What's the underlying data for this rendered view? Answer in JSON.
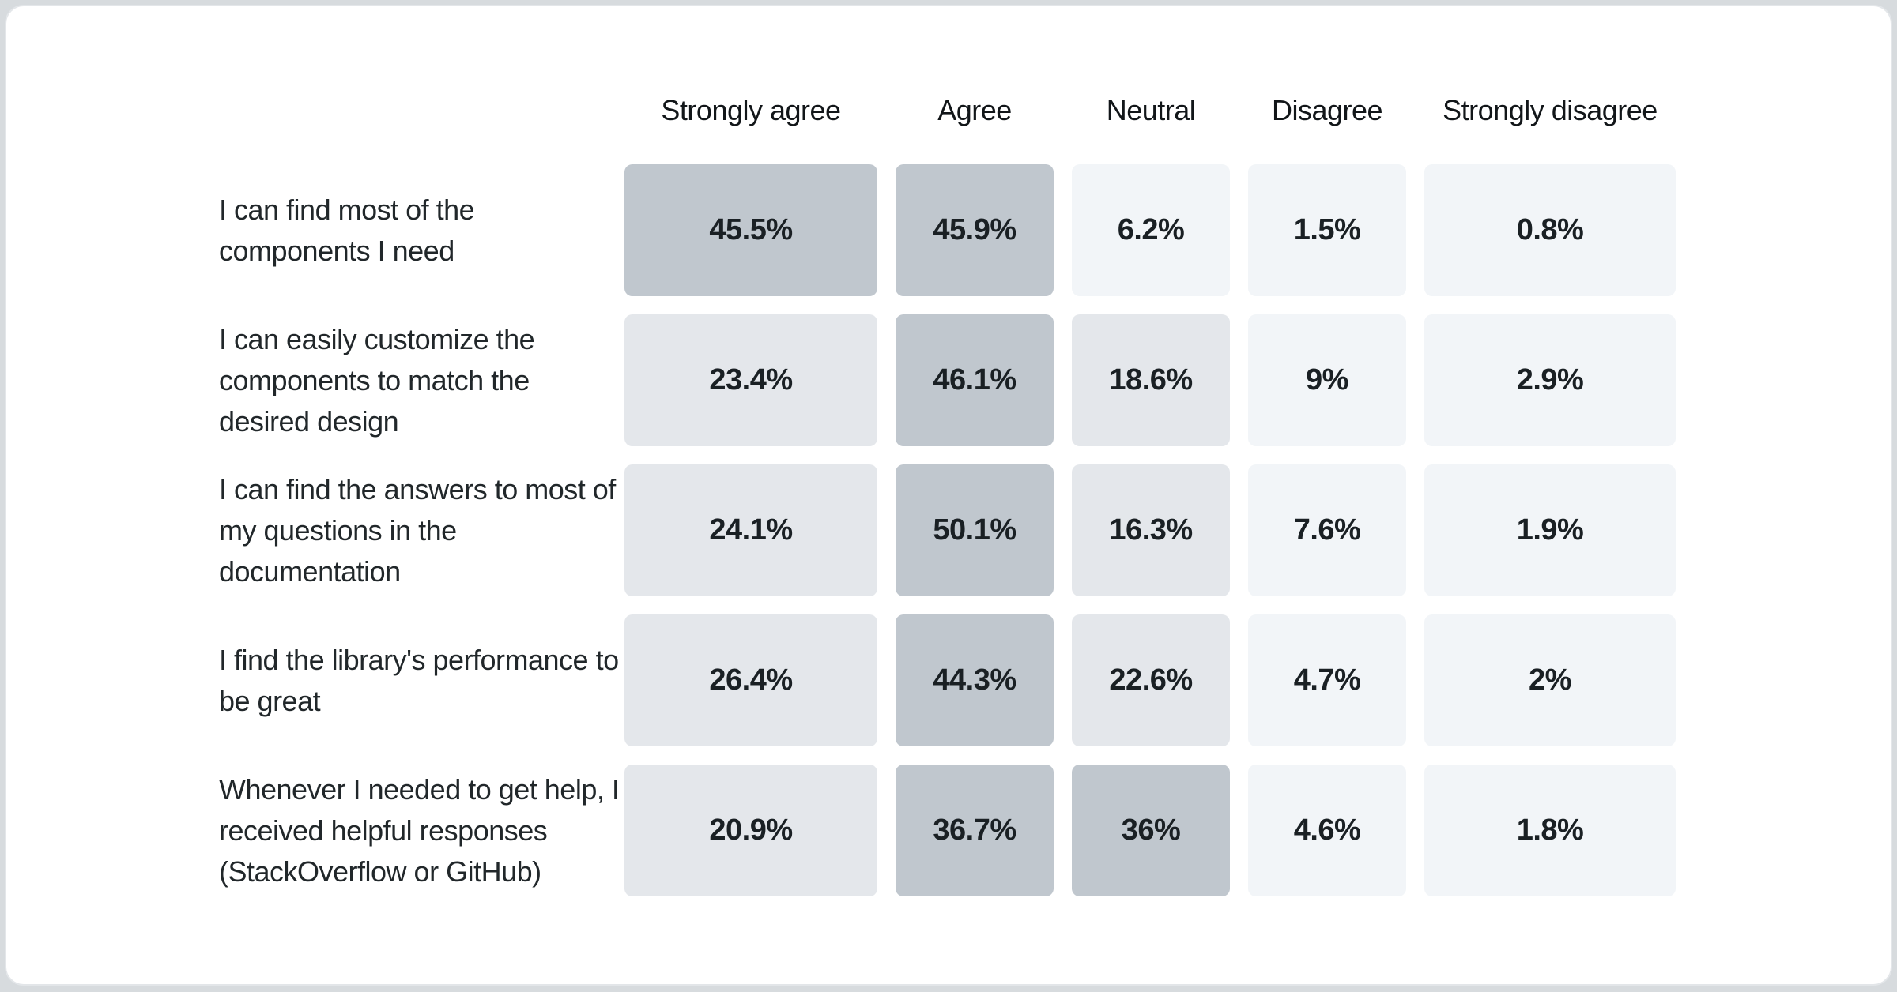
{
  "page": {
    "background": "#d7dbde",
    "card_background": "#ffffff",
    "card_border": "#e3e6e9"
  },
  "chart_data": {
    "type": "heatmap",
    "title": "",
    "columns": [
      "Strongly agree",
      "Agree",
      "Neutral",
      "Disagree",
      "Strongly disagree"
    ],
    "rows": [
      {
        "label": "I can find most of the components I need",
        "values": [
          "45.5%",
          "45.9%",
          "6.2%",
          "1.5%",
          "0.8%"
        ]
      },
      {
        "label": "I can easily customize the components to match the desired design",
        "values": [
          "23.4%",
          "46.1%",
          "18.6%",
          "9%",
          "2.9%"
        ]
      },
      {
        "label": "I can find the answers to most of my questions in the documentation",
        "values": [
          "24.1%",
          "50.1%",
          "16.3%",
          "7.6%",
          "1.9%"
        ]
      },
      {
        "label": "I find the library's performance to be great",
        "values": [
          "26.4%",
          "44.3%",
          "22.6%",
          "4.7%",
          "2%"
        ]
      },
      {
        "label": "Whenever I needed to get help, I received helpful responses (StackOverflow or GitHub)",
        "values": [
          "20.9%",
          "36.7%",
          "36%",
          "4.6%",
          "1.8%"
        ]
      }
    ],
    "color_buckets": [
      {
        "max": 10,
        "color": "#f2f5f8"
      },
      {
        "max": 30,
        "color": "#e4e7eb"
      },
      {
        "max": 101,
        "color": "#c0c7ce"
      }
    ],
    "header_text_color": "#121619",
    "label_text_color": "#21272a",
    "value_text_color": "#1a2024",
    "legend_position": "none",
    "grid": false
  }
}
